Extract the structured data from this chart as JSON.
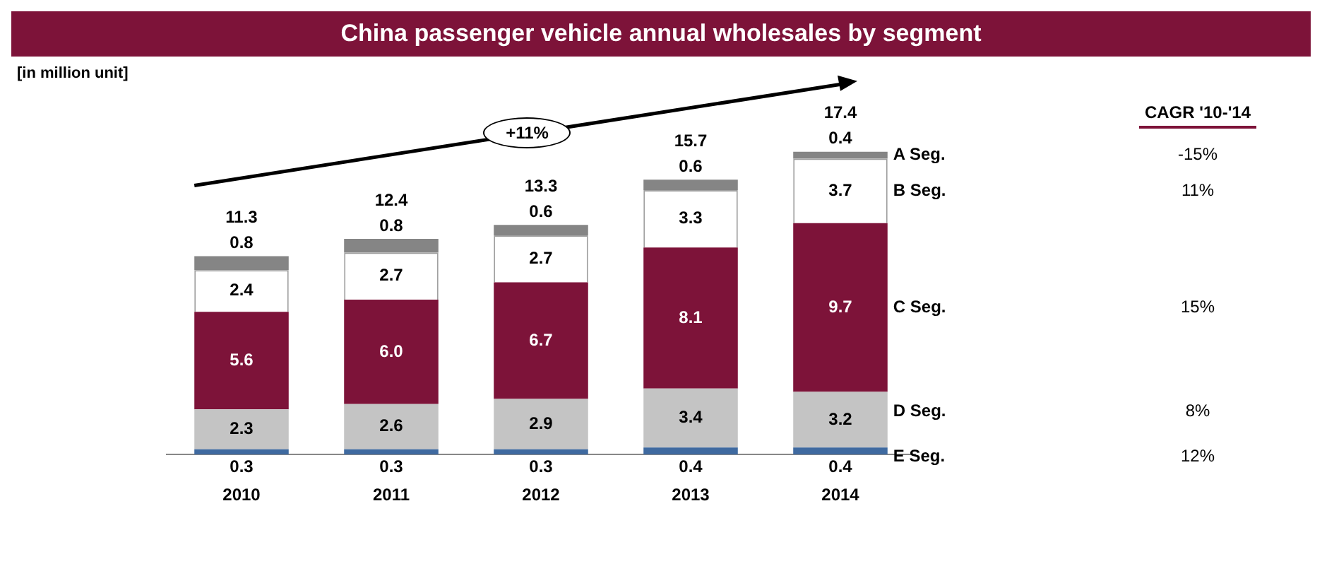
{
  "chart_data": {
    "type": "bar",
    "title": "China passenger vehicle annual wholesales by segment",
    "stacked": true,
    "categories": [
      "2010",
      "2011",
      "2012",
      "2013",
      "2014"
    ],
    "series": [
      {
        "name": "E Seg.",
        "color": "#3f6aa0",
        "values": [
          0.3,
          0.3,
          0.3,
          0.4,
          0.4
        ],
        "value_labels": [
          "0.3",
          "0.3",
          "0.3",
          "0.4",
          "0.4"
        ]
      },
      {
        "name": "D Seg.",
        "color": "#c4c4c4",
        "values": [
          2.3,
          2.6,
          2.9,
          3.4,
          3.2
        ],
        "value_labels": [
          "2.3",
          "2.6",
          "2.9",
          "3.4",
          "3.2"
        ]
      },
      {
        "name": "C Seg.",
        "color": "#7d1339",
        "values": [
          5.6,
          6.0,
          6.7,
          8.1,
          9.7
        ],
        "value_labels": [
          "5.6",
          "6.0",
          "6.7",
          "8.1",
          "9.7"
        ]
      },
      {
        "name": "B Seg.",
        "color": "#ffffff",
        "values": [
          2.4,
          2.7,
          2.7,
          3.3,
          3.7
        ],
        "value_labels": [
          "2.4",
          "2.7",
          "2.7",
          "3.3",
          "3.7"
        ]
      },
      {
        "name": "A Seg.",
        "color": "#858585",
        "values": [
          0.8,
          0.8,
          0.6,
          0.6,
          0.4
        ],
        "value_labels": [
          "0.8",
          "0.8",
          "0.6",
          "0.6",
          "0.4"
        ]
      }
    ],
    "totals": [
      "11.3",
      "12.4",
      "13.3",
      "15.7",
      "17.4"
    ],
    "annotations": [
      "[in million unit]",
      "+11%",
      "CAGR '10-'14",
      "-15%",
      "11%",
      "15%",
      "8%",
      "12%"
    ],
    "grid": false,
    "legend": "right"
  }
}
